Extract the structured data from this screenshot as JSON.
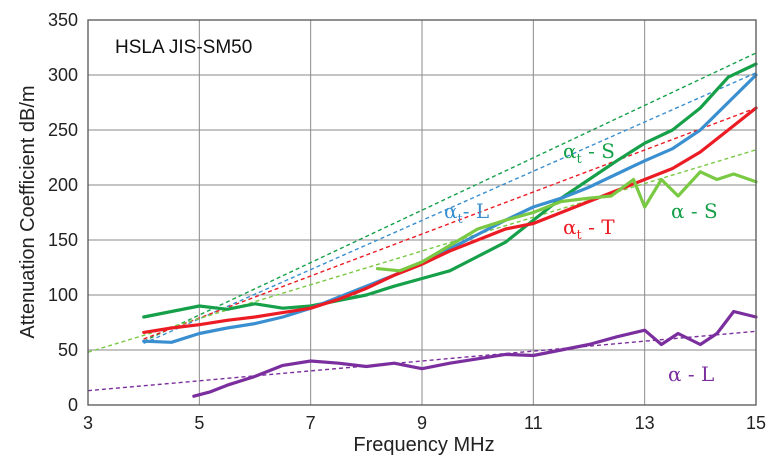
{
  "chart_data": {
    "type": "line",
    "title": "HSLA JIS-SM50",
    "xlabel": "Frequency  MHz",
    "ylabel": "Attenuation Coefficient  dB/m",
    "xlim": [
      3,
      15
    ],
    "ylim": [
      0,
      350
    ],
    "xticks": [
      "3",
      "5",
      "7",
      "9",
      "11",
      "13",
      "15"
    ],
    "yticks": [
      "0",
      "50",
      "100",
      "150",
      "200",
      "250",
      "300",
      "350"
    ],
    "grid": true,
    "colors": {
      "green": "#16a04a",
      "blue": "#3a8fd0",
      "red": "#ec1c24",
      "lightgreen": "#7ac943",
      "purple": "#7b2f9e"
    },
    "annotations": [
      {
        "id": "ann-at-s",
        "base": "α",
        "sub": "t",
        "tail": " - S",
        "color": "#16a04a"
      },
      {
        "id": "ann-at-l",
        "base": "α",
        "sub": "t",
        "tail": "- L",
        "color": "#3a8fd0"
      },
      {
        "id": "ann-at-t",
        "base": "α",
        "sub": "t",
        "tail": " - T",
        "color": "#ec1c24"
      },
      {
        "id": "ann-a-s",
        "base": "α - S",
        "sub": "",
        "tail": "",
        "color": "#16a04a"
      },
      {
        "id": "ann-a-l",
        "base": "α - L",
        "sub": "",
        "tail": "",
        "color": "#7b2f9e"
      }
    ],
    "series": [
      {
        "color": "green",
        "x": [
          4,
          4.5,
          5,
          5.5,
          6,
          6.5,
          7,
          7.5,
          8,
          8.5,
          9,
          9.5,
          10,
          10.5,
          11,
          11.5,
          12,
          12.5,
          13,
          13.5,
          14,
          14.5,
          15
        ],
        "y": [
          80,
          85,
          90,
          87,
          92,
          88,
          90,
          95,
          100,
          108,
          115,
          122,
          135,
          148,
          168,
          188,
          205,
          222,
          238,
          250,
          270,
          298,
          310
        ]
      },
      {
        "color": "blue",
        "x": [
          4,
          4.5,
          5,
          5.5,
          6,
          6.5,
          7,
          7.5,
          8,
          8.5,
          9,
          9.5,
          10,
          10.5,
          11,
          11.5,
          12,
          12.5,
          13,
          13.5,
          14,
          14.5,
          15
        ],
        "y": [
          58,
          57,
          65,
          70,
          74,
          80,
          88,
          98,
          108,
          118,
          130,
          142,
          155,
          168,
          180,
          188,
          198,
          210,
          222,
          233,
          250,
          275,
          300
        ]
      },
      {
        "color": "red",
        "x": [
          4,
          4.5,
          5,
          5.5,
          6,
          6.5,
          7,
          7.5,
          8,
          8.5,
          9,
          9.5,
          10,
          10.5,
          11,
          11.5,
          12,
          12.5,
          13,
          13.5,
          14,
          14.5,
          15
        ],
        "y": [
          66,
          70,
          73,
          77,
          80,
          84,
          88,
          96,
          106,
          118,
          128,
          140,
          150,
          160,
          165,
          175,
          185,
          195,
          205,
          215,
          230,
          250,
          270
        ]
      },
      {
        "color": "lightgreen",
        "x": [
          8.2,
          8.6,
          9,
          9.5,
          10,
          10.5,
          11,
          11.5,
          12,
          12.4,
          12.8,
          13,
          13.3,
          13.6,
          14,
          14.3,
          14.6,
          15
        ],
        "y": [
          124,
          122,
          130,
          145,
          160,
          168,
          175,
          185,
          188,
          190,
          205,
          180,
          205,
          190,
          212,
          205,
          210,
          203
        ]
      },
      {
        "color": "purple",
        "x": [
          4.9,
          5.2,
          5.5,
          6,
          6.5,
          7,
          7.5,
          8,
          8.5,
          9,
          9.5,
          10,
          10.5,
          11,
          11.5,
          12,
          12.5,
          13,
          13.3,
          13.6,
          14,
          14.3,
          14.6,
          15
        ],
        "y": [
          8,
          12,
          18,
          26,
          36,
          40,
          38,
          35,
          38,
          33,
          38,
          42,
          46,
          45,
          50,
          55,
          62,
          68,
          55,
          65,
          55,
          65,
          85,
          80
        ]
      }
    ],
    "fits": [
      {
        "color": "green",
        "x": [
          4,
          15
        ],
        "y": [
          58,
          320
        ]
      },
      {
        "color": "blue",
        "x": [
          4,
          15
        ],
        "y": [
          56,
          302
        ]
      },
      {
        "color": "red",
        "x": [
          4,
          15
        ],
        "y": [
          60,
          270
        ]
      },
      {
        "color": "lightgreen",
        "x": [
          3,
          15
        ],
        "y": [
          48,
          232
        ]
      },
      {
        "color": "purple",
        "x": [
          3,
          15
        ],
        "y": [
          13,
          67
        ]
      }
    ]
  }
}
